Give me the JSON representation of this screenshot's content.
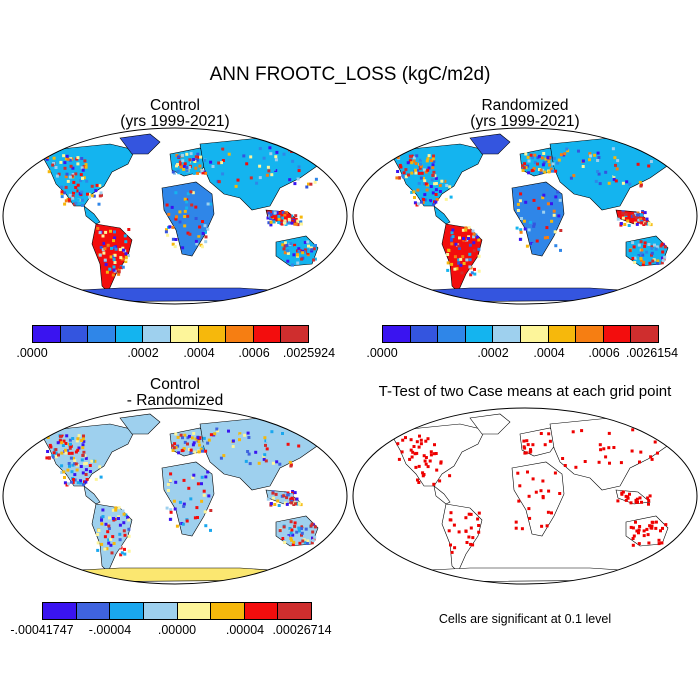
{
  "title": "ANN FROOTC_LOSS (kgC/m2d)",
  "panels": {
    "control": {
      "line1": "Control",
      "line2": "(yrs 1999-2021)"
    },
    "randomized": {
      "line1": "Randomized",
      "line2": "(yrs 1999-2021)"
    },
    "difference": {
      "line1": "Control",
      "line2": "- Randomized"
    },
    "ttest": {
      "line1": "T-Test of two Case means at each grid point"
    }
  },
  "colorbars": {
    "control": {
      "colors": [
        "#3a14f0",
        "#3455df",
        "#2f86e8",
        "#14b4ef",
        "#9ed0ee",
        "#fdf59a",
        "#f6b80c",
        "#f67e12",
        "#f30d0d",
        "#cf2e2e"
      ],
      "ticks": [
        ".0000",
        ".0002",
        ".0004",
        ".0006",
        ".0025924"
      ]
    },
    "randomized": {
      "colors": [
        "#3a14f0",
        "#3455df",
        "#2f86e8",
        "#14b4ef",
        "#9ed0ee",
        "#fdf59a",
        "#f6b80c",
        "#f67e12",
        "#f30d0d",
        "#cf2e2e"
      ],
      "ticks": [
        ".0000",
        ".0002",
        ".0004",
        ".0006",
        ".0026154"
      ]
    },
    "difference": {
      "colors": [
        "#3a14f0",
        "#3f63df",
        "#1aa7ee",
        "#9ed0ee",
        "#fdf59a",
        "#f6b80c",
        "#f30d0d",
        "#cf2e2e"
      ],
      "ticks": [
        "-.00041747",
        "-.00004",
        ".00000",
        ".00004",
        ".00026714"
      ]
    }
  },
  "note": "Cells are significant at 0.1 level",
  "colors": {
    "ocean": "#ffffff",
    "antarctica_abs": "#3455df",
    "antarctica_diff": "#fbe770",
    "land_low": "#3455df",
    "land_high": "#f30d0d",
    "significant": "#ee0000"
  }
}
